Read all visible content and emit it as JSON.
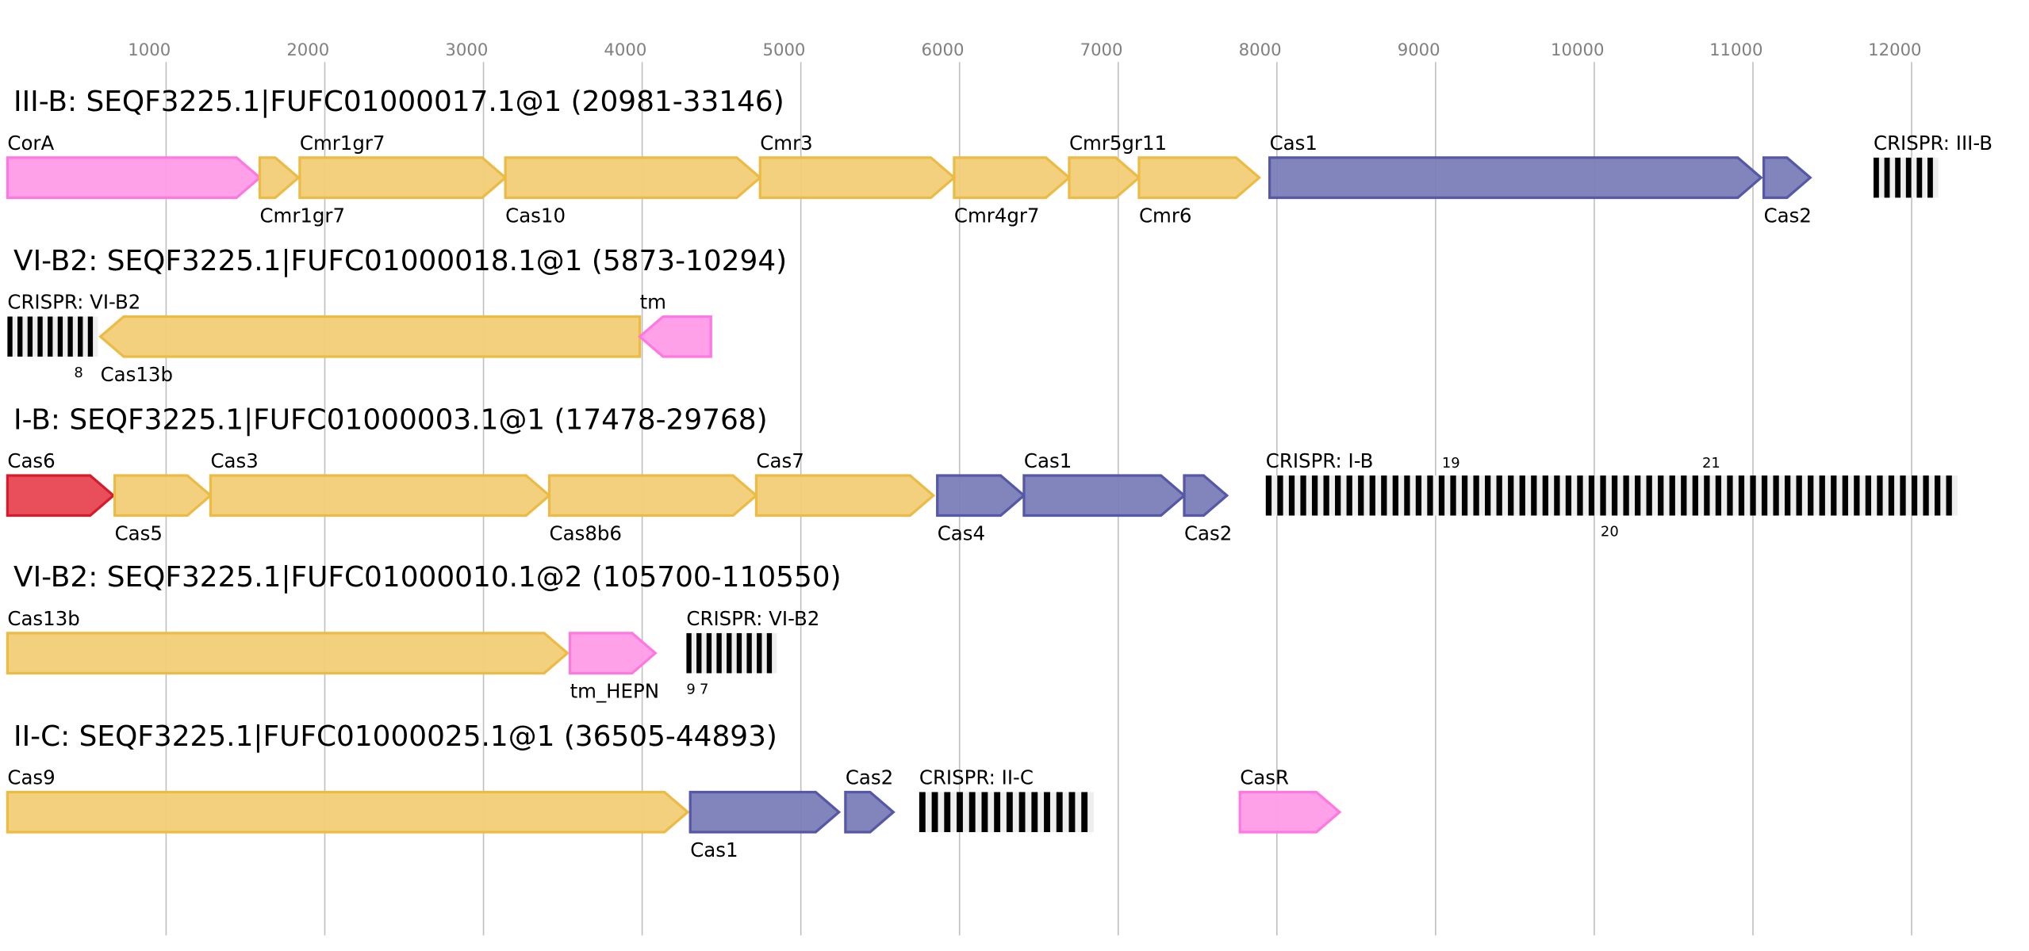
{
  "colors": {
    "yellow": {
      "fill": "#f2cd76",
      "stroke": "#ecbb45"
    },
    "pink": {
      "fill": "#ff9ce8",
      "stroke": "#ff77e0"
    },
    "blue": {
      "fill": "#7b7db8",
      "stroke": "#5558a6"
    },
    "red": {
      "fill": "#e84452",
      "stroke": "#d41c2c"
    },
    "grid": "#c0c0c0",
    "crispr_bar": "#000000",
    "crispr_gap": "#eeeeee"
  },
  "axis": {
    "ticks": [
      1000,
      2000,
      3000,
      4000,
      5000,
      6000,
      7000,
      8000,
      9000,
      10000,
      11000,
      12000
    ]
  },
  "loci": [
    {
      "title": "III-B: SEQF3225.1|FUFC01000017.1@1 (20981-33146)",
      "features": [
        {
          "type": "gene",
          "name": "CorA",
          "start": 0,
          "end": 1590,
          "strand": 1,
          "color": "pink"
        },
        {
          "type": "gene",
          "name": "Cmr1gr7",
          "start": 1590,
          "end": 1834,
          "strand": 1,
          "color": "yellow"
        },
        {
          "type": "gene",
          "name": "Cmr1gr7",
          "start": 1842,
          "end": 3138,
          "strand": 1,
          "color": "yellow"
        },
        {
          "type": "gene",
          "name": "Cas10",
          "start": 3138,
          "end": 4743,
          "strand": 1,
          "color": "yellow"
        },
        {
          "type": "gene",
          "name": "Cmr3",
          "start": 4743,
          "end": 5966,
          "strand": 1,
          "color": "yellow"
        },
        {
          "type": "gene",
          "name": "Cmr4gr7",
          "start": 5966,
          "end": 6691,
          "strand": 1,
          "color": "yellow"
        },
        {
          "type": "gene",
          "name": "Cmr5gr11",
          "start": 6691,
          "end": 7131,
          "strand": 1,
          "color": "yellow"
        },
        {
          "type": "gene",
          "name": "Cmr6",
          "start": 7131,
          "end": 7889,
          "strand": 1,
          "color": "yellow"
        },
        {
          "type": "gene",
          "name": "Cas1",
          "start": 7954,
          "end": 11051,
          "strand": 1,
          "color": "blue"
        },
        {
          "type": "gene",
          "name": "Cas2",
          "start": 11068,
          "end": 11361,
          "strand": 1,
          "color": "blue"
        },
        {
          "type": "crispr",
          "name": "CRISPR: III-B",
          "start": 11760,
          "end": 12168,
          "repeats": 6
        }
      ]
    },
    {
      "title": "VI-B2: SEQF3225.1|FUFC01000018.1@1 (5873-10294)",
      "features": [
        {
          "type": "crispr",
          "name": "CRISPR: VI-B2",
          "start": 0,
          "end": 570,
          "repeats": 9,
          "counts": [
            {
              "label": "8",
              "pos": 420,
              "side": "above"
            }
          ]
        },
        {
          "type": "gene",
          "name": "Cas13b",
          "start": 586,
          "end": 3985,
          "strand": -1,
          "color": "yellow"
        },
        {
          "type": "gene",
          "name": "tm",
          "start": 3985,
          "end": 4433,
          "strand": -1,
          "color": "pink"
        }
      ]
    },
    {
      "title": "I-B: SEQF3225.1|FUFC01000003.1@1 (17478-29768)",
      "features": [
        {
          "type": "gene",
          "name": "Cas6",
          "start": 0,
          "end": 668,
          "strand": 1,
          "color": "red"
        },
        {
          "type": "gene",
          "name": "Cas5",
          "start": 676,
          "end": 1280,
          "strand": 1,
          "color": "yellow"
        },
        {
          "type": "gene",
          "name": "Cas3",
          "start": 1280,
          "end": 3415,
          "strand": 1,
          "color": "yellow"
        },
        {
          "type": "gene",
          "name": "Cas8b6",
          "start": 3415,
          "end": 4719,
          "strand": 1,
          "color": "yellow"
        },
        {
          "type": "gene",
          "name": "Cas7",
          "start": 4719,
          "end": 5835,
          "strand": 1,
          "color": "yellow"
        },
        {
          "type": "gene",
          "name": "Cas4",
          "start": 5860,
          "end": 6406,
          "strand": 1,
          "color": "blue"
        },
        {
          "type": "gene",
          "name": "Cas1",
          "start": 6406,
          "end": 7416,
          "strand": 1,
          "color": "blue"
        },
        {
          "type": "gene",
          "name": "Cas2",
          "start": 7416,
          "end": 7685,
          "strand": 1,
          "color": "blue"
        },
        {
          "type": "crispr",
          "name": "CRISPR: I-B",
          "start": 7930,
          "end": 12290,
          "repeats": 60,
          "counts": [
            {
              "label": "19",
              "pos": 9040,
              "side": "above"
            },
            {
              "label": "20",
              "pos": 10040,
              "side": "below"
            },
            {
              "label": "21",
              "pos": 10680,
              "side": "above"
            }
          ]
        }
      ]
    },
    {
      "title": "VI-B2: SEQF3225.1|FUFC01000010.1@2 (105700-110550)",
      "features": [
        {
          "type": "gene",
          "name": "Cas13b",
          "start": 0,
          "end": 3529,
          "strand": 1,
          "color": "yellow"
        },
        {
          "type": "gene",
          "name": "tm_HEPN",
          "start": 3545,
          "end": 4083,
          "strand": 1,
          "color": "pink"
        },
        {
          "type": "crispr",
          "name": "CRISPR: VI-B2",
          "start": 4279,
          "end": 4849,
          "repeats": 9,
          "counts": [
            {
              "label": "9",
              "pos": 4270,
              "side": "above"
            },
            {
              "label": "7",
              "pos": 4320,
              "side": "above"
            }
          ]
        }
      ]
    },
    {
      "title": "II-C: SEQF3225.1|FUFC01000025.1@1 (36505-44893)",
      "features": [
        {
          "type": "gene",
          "name": "Cas9",
          "start": 0,
          "end": 4287,
          "strand": 1,
          "color": "yellow"
        },
        {
          "type": "gene",
          "name": "Cas1",
          "start": 4303,
          "end": 5240,
          "strand": 1,
          "color": "blue"
        },
        {
          "type": "gene",
          "name": "Cas2",
          "start": 5281,
          "end": 5583,
          "strand": 1,
          "color": "blue"
        },
        {
          "type": "crispr",
          "name": "CRISPR: II-C",
          "start": 5746,
          "end": 6846,
          "repeats": 14
        },
        {
          "type": "gene",
          "name": "CasR",
          "start": 7767,
          "end": 8395,
          "strand": 1,
          "color": "pink"
        }
      ]
    }
  ]
}
